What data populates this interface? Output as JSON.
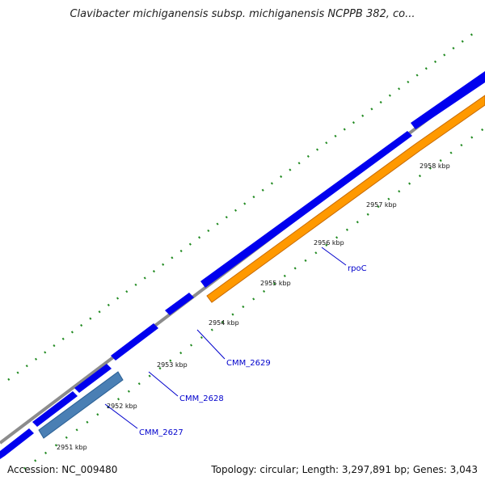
{
  "title": "Clavibacter michiganensis subsp. michiganensis NCPPB 382, co...",
  "footer": {
    "accession": "Accession: NC_009480",
    "topology": "Topology: circular; Length: 3,297,891 bp; Genes: 3,043"
  },
  "colors": {
    "backbone": "#8c8c8c",
    "cds": "#0000ee",
    "cds_highlight": "#ff9900",
    "cds_alt": "#4a7fb4",
    "tick_major": "#006400",
    "label_line": "#0000cc"
  },
  "ticks": [
    {
      "label": "2951 kbp"
    },
    {
      "label": "2952 kbp"
    },
    {
      "label": "2953 kbp"
    },
    {
      "label": "2954 kbp"
    },
    {
      "label": "2955 kbp"
    },
    {
      "label": "2956 kbp"
    },
    {
      "label": "2957 kbp"
    },
    {
      "label": "2958 kbp"
    }
  ],
  "gene_labels": [
    {
      "label": "CMM_2627"
    },
    {
      "label": "CMM_2628"
    },
    {
      "label": "CMM_2629"
    },
    {
      "label": "rpoC"
    }
  ]
}
